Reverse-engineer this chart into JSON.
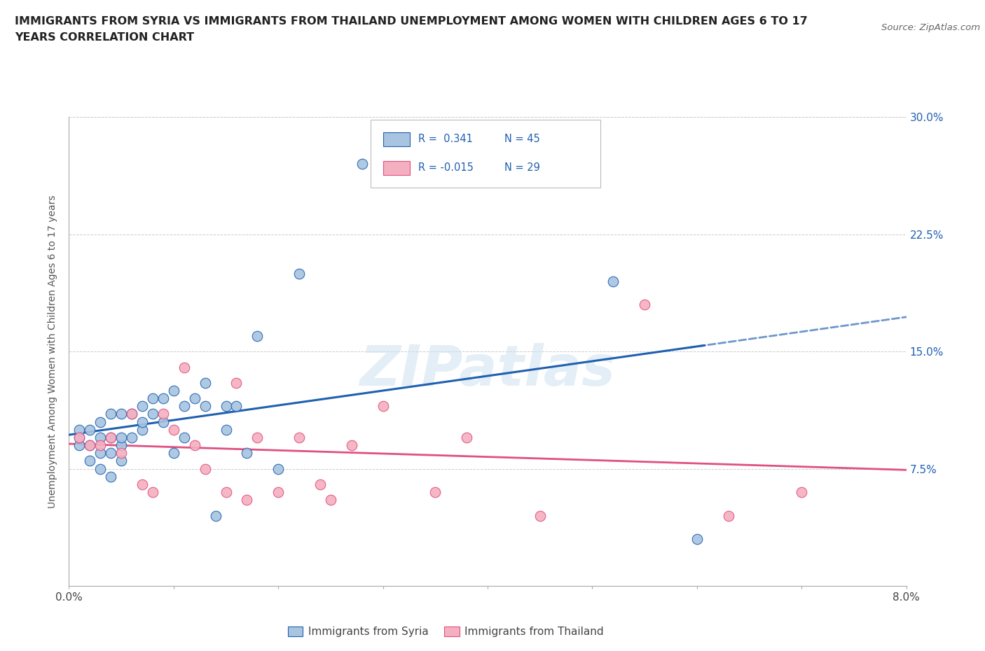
{
  "title_line1": "IMMIGRANTS FROM SYRIA VS IMMIGRANTS FROM THAILAND UNEMPLOYMENT AMONG WOMEN WITH CHILDREN AGES 6 TO 17",
  "title_line2": "YEARS CORRELATION CHART",
  "source": "Source: ZipAtlas.com",
  "ylabel": "Unemployment Among Women with Children Ages 6 to 17 years",
  "watermark": "ZIPatlas",
  "legend_syria": "Immigrants from Syria",
  "legend_thailand": "Immigrants from Thailand",
  "r_syria": "0.341",
  "n_syria": "45",
  "r_thailand": "-0.015",
  "n_thailand": "29",
  "color_syria": "#a8c4e0",
  "color_syria_line": "#2060b0",
  "color_thailand": "#f4b0c0",
  "color_thailand_line": "#e05080",
  "xlim": [
    0.0,
    0.08
  ],
  "ylim": [
    0.0,
    0.3
  ],
  "xticks": [
    0.0,
    0.01,
    0.02,
    0.03,
    0.04,
    0.05,
    0.06,
    0.07,
    0.08
  ],
  "xtick_labels": [
    "0.0%",
    "",
    "",
    "",
    "",
    "",
    "",
    "",
    "8.0%"
  ],
  "yticks_right": [
    0.0,
    0.075,
    0.15,
    0.225,
    0.3
  ],
  "ytick_right_labels": [
    "",
    "7.5%",
    "15.0%",
    "22.5%",
    "30.0%"
  ],
  "syria_x": [
    0.001,
    0.001,
    0.001,
    0.002,
    0.002,
    0.002,
    0.003,
    0.003,
    0.003,
    0.003,
    0.004,
    0.004,
    0.004,
    0.004,
    0.005,
    0.005,
    0.005,
    0.005,
    0.006,
    0.006,
    0.007,
    0.007,
    0.007,
    0.008,
    0.008,
    0.009,
    0.009,
    0.01,
    0.01,
    0.011,
    0.011,
    0.012,
    0.013,
    0.013,
    0.014,
    0.015,
    0.015,
    0.016,
    0.017,
    0.018,
    0.02,
    0.022,
    0.028,
    0.052,
    0.06
  ],
  "syria_y": [
    0.09,
    0.095,
    0.1,
    0.08,
    0.09,
    0.1,
    0.075,
    0.085,
    0.095,
    0.105,
    0.07,
    0.085,
    0.095,
    0.11,
    0.08,
    0.09,
    0.095,
    0.11,
    0.095,
    0.11,
    0.1,
    0.105,
    0.115,
    0.11,
    0.12,
    0.105,
    0.12,
    0.085,
    0.125,
    0.095,
    0.115,
    0.12,
    0.115,
    0.13,
    0.045,
    0.1,
    0.115,
    0.115,
    0.085,
    0.16,
    0.075,
    0.2,
    0.27,
    0.195,
    0.03
  ],
  "thailand_x": [
    0.001,
    0.002,
    0.003,
    0.004,
    0.005,
    0.006,
    0.007,
    0.008,
    0.009,
    0.01,
    0.011,
    0.012,
    0.013,
    0.015,
    0.016,
    0.017,
    0.018,
    0.02,
    0.022,
    0.024,
    0.025,
    0.027,
    0.03,
    0.035,
    0.038,
    0.045,
    0.055,
    0.063,
    0.07
  ],
  "thailand_y": [
    0.095,
    0.09,
    0.09,
    0.095,
    0.085,
    0.11,
    0.065,
    0.06,
    0.11,
    0.1,
    0.14,
    0.09,
    0.075,
    0.06,
    0.13,
    0.055,
    0.095,
    0.06,
    0.095,
    0.065,
    0.055,
    0.09,
    0.115,
    0.06,
    0.095,
    0.045,
    0.18,
    0.045,
    0.06
  ]
}
